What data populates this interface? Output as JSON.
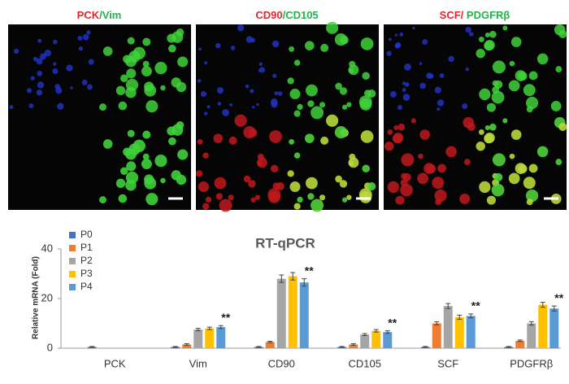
{
  "panels": [
    {
      "red": "PCK",
      "green": "/Vim"
    },
    {
      "red": "CD90",
      "green": "/CD105"
    },
    {
      "red": "SCF/",
      "green": " PDGFRβ"
    }
  ],
  "chart_data": {
    "type": "bar",
    "title": "RT-qPCR",
    "y_label": "Relative mRNA (Fold)",
    "categories": [
      "PCK",
      "Vim",
      "CD90",
      "CD105",
      "SCF",
      "PDGFRβ"
    ],
    "series": [
      {
        "name": "P0",
        "color": "#4472c4",
        "values": [
          0.5,
          0.5,
          0.5,
          0.5,
          0.5,
          0.5
        ],
        "errors": [
          0.2,
          0.2,
          0.2,
          0.2,
          0.2,
          0.2
        ]
      },
      {
        "name": "P1",
        "color": "#ed7d31",
        "values": [
          0,
          1.5,
          2.5,
          1.5,
          10,
          3
        ],
        "errors": [
          0,
          0.3,
          0.3,
          0.3,
          0.6,
          0.3
        ]
      },
      {
        "name": "P2",
        "color": "#a5a5a5",
        "values": [
          0,
          7.5,
          28,
          5.5,
          17,
          10
        ],
        "errors": [
          0,
          0.5,
          1.5,
          0.4,
          1,
          0.7
        ]
      },
      {
        "name": "P3",
        "color": "#ffc000",
        "values": [
          0,
          8,
          29,
          7,
          12.5,
          17.5
        ],
        "errors": [
          0,
          0.5,
          1.5,
          0.5,
          0.8,
          1
        ]
      },
      {
        "name": "P4",
        "color": "#5b9bd5",
        "values": [
          0,
          8.5,
          26.5,
          6.5,
          13,
          16
        ],
        "errors": [
          0,
          0.6,
          1.5,
          0.5,
          0.8,
          1
        ],
        "significance": [
          null,
          "**",
          "**",
          "**",
          "**",
          "**"
        ]
      }
    ],
    "ylim": [
      0,
      40
    ],
    "yticks": [
      0,
      20,
      40
    ],
    "legend": "top-left"
  }
}
